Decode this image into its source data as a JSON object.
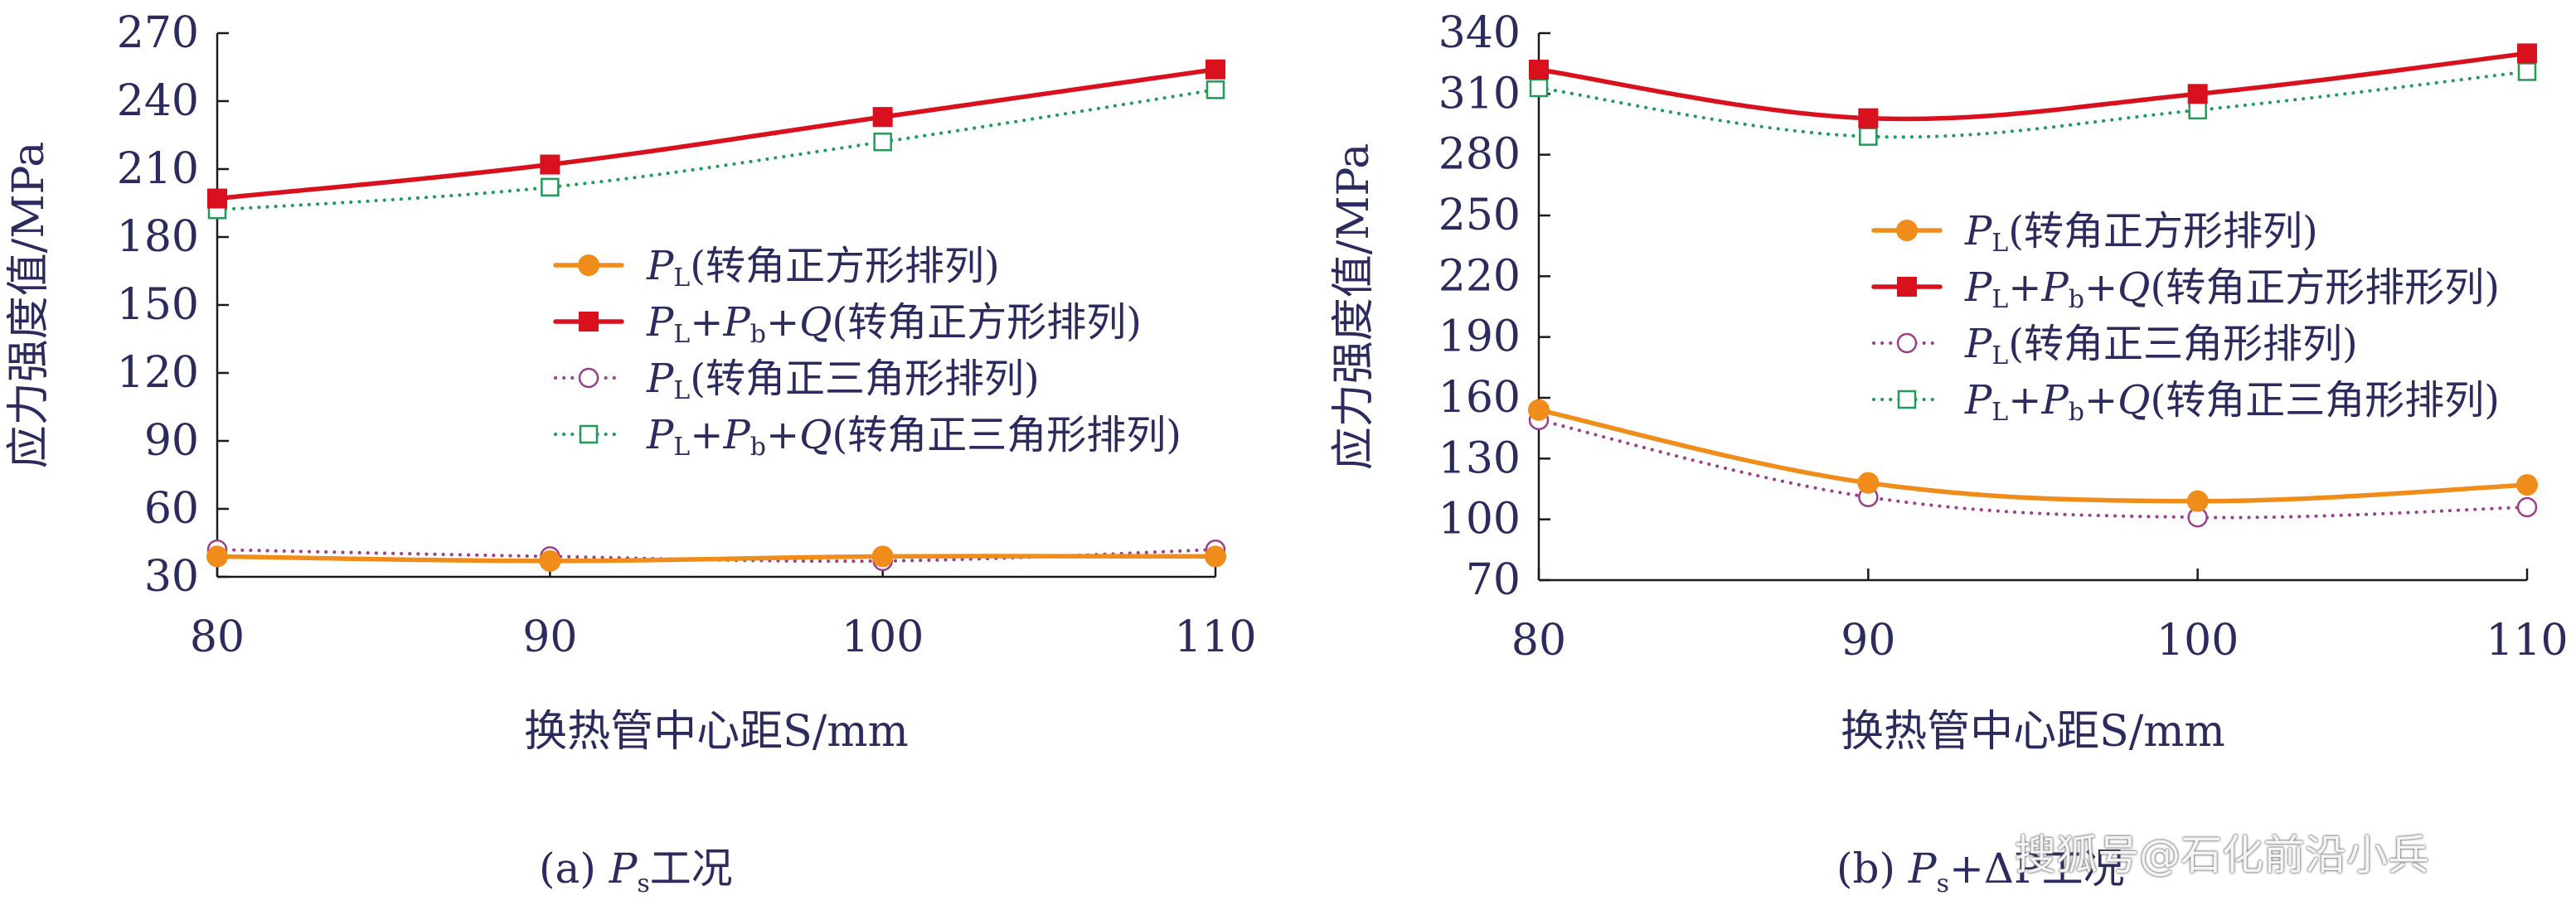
{
  "colors": {
    "text": "#2b2b5e",
    "axis": "#1a1a1a",
    "orange": "#f08c1a",
    "red": "#d9111f",
    "purple": "#9b3f8a",
    "green": "#1f9a57"
  },
  "legend_labels": [
    {
      "main": "P",
      "sub": "L",
      "text": "(转角正方形排列)"
    },
    {
      "main": "P",
      "sub": "L",
      "plus1": "+P",
      "sub2": "b",
      "plus2": "+Q",
      "text": "(转角正方形排列)"
    },
    {
      "main": "P",
      "sub": "L",
      "text": "(转角正三角形排列)"
    },
    {
      "main": "P",
      "sub": "L",
      "plus1": "+P",
      "sub2": "b",
      "plus2": "+Q",
      "text": "(转角正三角形排列)"
    }
  ],
  "legend_labels_b": [
    {
      "main": "P",
      "sub": "L",
      "text": "(转角正方形排列)"
    },
    {
      "main": "P",
      "sub": "L",
      "plus1": "+P",
      "sub2": "b",
      "plus2": "+Q",
      "text": "(转角正方形排形列)"
    },
    {
      "main": "P",
      "sub": "L",
      "text": "(转角正三角形排列)"
    },
    {
      "main": "P",
      "sub": "L",
      "plus1": "+P",
      "sub2": "b",
      "plus2": "+Q",
      "text": "(转角正三角形排列)"
    }
  ],
  "chart_data": [
    {
      "type": "line",
      "xlabel": "换热管中心距S/mm",
      "ylabel": "应力强度值/MPa",
      "x": [
        80,
        90,
        100,
        110
      ],
      "xlim": [
        80,
        110
      ],
      "ylim": [
        30,
        270
      ],
      "xticks": [
        "80",
        "90",
        "100",
        "110"
      ],
      "yticks": [
        "30",
        "60",
        "90",
        "120",
        "150",
        "180",
        "210",
        "240",
        "270"
      ],
      "grid": false,
      "legend_position": "center-right",
      "series": [
        {
          "values": [
            39,
            37,
            39,
            39
          ],
          "color": "#f08c1a",
          "marker": "circle-filled",
          "dash": "solid"
        },
        {
          "values": [
            197,
            212,
            233,
            254
          ],
          "color": "#d9111f",
          "marker": "square-filled",
          "dash": "solid"
        },
        {
          "values": [
            42,
            39,
            37,
            42
          ],
          "color": "#9b3f8a",
          "marker": "circle-open",
          "dash": "dotted"
        },
        {
          "values": [
            192,
            202,
            222,
            245
          ],
          "color": "#1f9a57",
          "marker": "square-open",
          "dash": "dotted"
        }
      ],
      "caption": {
        "pre": "(a) ",
        "main": "P",
        "sub": "s",
        "post": "工况"
      }
    },
    {
      "type": "line",
      "xlabel": "换热管中心距S/mm",
      "ylabel": "应力强度值/MPa",
      "x": [
        80,
        90,
        100,
        110
      ],
      "xlim": [
        80,
        110
      ],
      "ylim": [
        70,
        340
      ],
      "xticks": [
        "80",
        "90",
        "100",
        "110"
      ],
      "yticks": [
        "70",
        "100",
        "130",
        "160",
        "190",
        "220",
        "250",
        "280",
        "310",
        "340"
      ],
      "grid": false,
      "legend_position": "center-right",
      "series": [
        {
          "values": [
            154,
            118,
            109,
            117
          ],
          "color": "#f08c1a",
          "marker": "circle-filled",
          "dash": "solid"
        },
        {
          "values": [
            322,
            298,
            310,
            330
          ],
          "color": "#d9111f",
          "marker": "square-filled",
          "dash": "solid"
        },
        {
          "values": [
            149,
            111,
            101,
            106
          ],
          "color": "#9b3f8a",
          "marker": "circle-open",
          "dash": "dotted"
        },
        {
          "values": [
            313,
            289,
            302,
            321
          ],
          "color": "#1f9a57",
          "marker": "square-open",
          "dash": "dotted"
        }
      ],
      "caption": {
        "pre": "(b) ",
        "main": "P",
        "sub": "s",
        "post": "+ΔP工况"
      }
    }
  ],
  "watermark": "搜狐号@石化前沿小兵"
}
